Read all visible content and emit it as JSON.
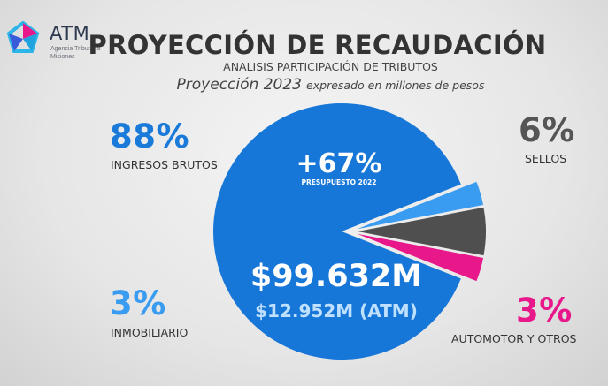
{
  "logo": {
    "name": "ATM",
    "subtitle_line1": "Agencia Tributaria",
    "subtitle_line2": "Misiones"
  },
  "header": {
    "title": "PROYECCIÓN DE RECAUDACIÓN",
    "subtitle": "ANALISIS PARTICIPACIÓN DE TRIBUTOS",
    "projection_big": "Proyección 2023",
    "projection_small": "expresado en millones de pesos"
  },
  "colors": {
    "ingresos_brutos": "#1777d8",
    "inmobiliario": "#3a9cf0",
    "sellos": "#4f4f4f",
    "automotor": "#e8178a",
    "pct_blue": "#1a7ad9",
    "pct_light_blue": "#3a9cf0",
    "pct_gray": "#555555",
    "pct_pink": "#e8178a"
  },
  "labels": {
    "ingresos_brutos": {
      "pct": "88%",
      "name": "INGRESOS BRUTOS"
    },
    "sellos": {
      "pct": "6%",
      "name": "SELLOS"
    },
    "inmobiliario": {
      "pct": "3%",
      "name": "INMOBILIARIO"
    },
    "automotor": {
      "pct": "3%",
      "name": "AUTOMOTOR Y OTROS"
    }
  },
  "center": {
    "growth": "+67%",
    "growth_caption": "PRESUPUESTO 2022",
    "total": "$99.632M",
    "atm": "$12.952M (ATM)"
  },
  "chart_data": {
    "type": "pie",
    "categories": [
      "INGRESOS BRUTOS",
      "INMOBILIARIO",
      "SELLOS",
      "AUTOMOTOR Y OTROS"
    ],
    "values": [
      88,
      3,
      6,
      3
    ],
    "title": "PROYECCIÓN DE RECAUDACIÓN",
    "subtitle": "ANALISIS PARTICIPACIÓN DE TRIBUTOS"
  }
}
